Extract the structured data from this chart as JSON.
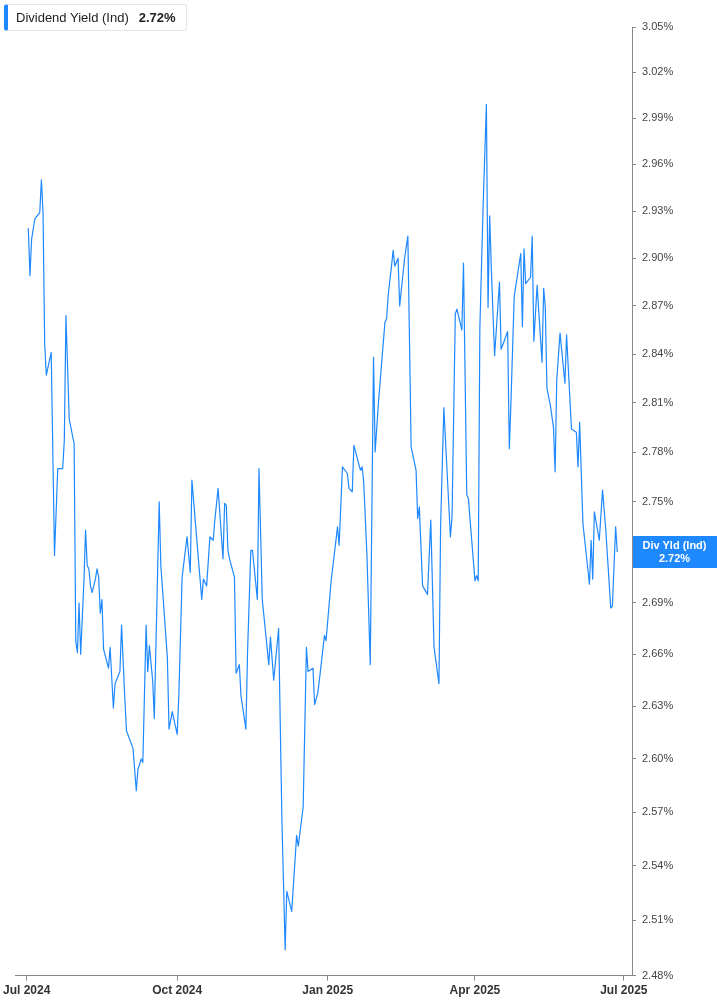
{
  "chart_data": {
    "type": "line",
    "title": "Dividend Yield (Ind)",
    "subtitle": "2.72%",
    "log": "y",
    "marker": "none",
    "line_style": "solid",
    "grid": false,
    "legend": false,
    "xlim": [
      "2024-06-24",
      "2025-07-06"
    ],
    "xticks": [
      {
        "value": "2024-07-01",
        "label": "Jul 2024"
      },
      {
        "value": "2024-10-01",
        "label": "Oct 2024"
      },
      {
        "value": "2025-01-01",
        "label": "Jan 2025"
      },
      {
        "value": "2025-04-01",
        "label": "Apr 2025"
      },
      {
        "value": "2025-07-01",
        "label": "Jul 2025"
      }
    ],
    "ylim": [
      2.48,
      3.05
    ],
    "yticks": [
      {
        "value": 2.48,
        "label": "2.48%"
      },
      {
        "value": 2.51,
        "label": "2.51%"
      },
      {
        "value": 2.54,
        "label": "2.54%"
      },
      {
        "value": 2.57,
        "label": "2.57%"
      },
      {
        "value": 2.6,
        "label": "2.60%"
      },
      {
        "value": 2.63,
        "label": "2.63%"
      },
      {
        "value": 2.66,
        "label": "2.66%"
      },
      {
        "value": 2.69,
        "label": "2.69%"
      },
      {
        "value": 2.72,
        "label": null
      },
      {
        "value": 2.75,
        "label": "2.75%"
      },
      {
        "value": 2.78,
        "label": "2.78%"
      },
      {
        "value": 2.81,
        "label": "2.81%"
      },
      {
        "value": 2.84,
        "label": "2.84%"
      },
      {
        "value": 2.87,
        "label": "2.87%"
      },
      {
        "value": 2.9,
        "label": "2.90%"
      },
      {
        "value": 2.93,
        "label": "2.93%"
      },
      {
        "value": 2.96,
        "label": "2.96%"
      },
      {
        "value": 2.99,
        "label": "2.99%"
      },
      {
        "value": 3.02,
        "label": "3.02%"
      },
      {
        "value": 3.05,
        "label": "3.05%"
      }
    ],
    "annotations": [
      "Div Yld (Ind)",
      "2.72%"
    ],
    "series": [
      {
        "color": "#1e88ff",
        "x": [
          "2024-07-02",
          "2024-07-03",
          "2024-07-04",
          "2024-07-06",
          "2024-07-09",
          "2024-07-10",
          "2024-07-11",
          "2024-07-12",
          "2024-07-13",
          "2024-07-16",
          "2024-07-18",
          "2024-07-20",
          "2024-07-23",
          "2024-07-24",
          "2024-07-25",
          "2024-07-27",
          "2024-07-30",
          "2024-07-31",
          "2024-08-01",
          "2024-08-02",
          "2024-08-03",
          "2024-08-05",
          "2024-08-06",
          "2024-08-07",
          "2024-08-08",
          "2024-08-09",
          "2024-08-10",
          "2024-08-12",
          "2024-08-13",
          "2024-08-14",
          "2024-08-15",
          "2024-08-16",
          "2024-08-17",
          "2024-08-20",
          "2024-08-21",
          "2024-08-23",
          "2024-08-24",
          "2024-08-27",
          "2024-08-28",
          "2024-08-30",
          "2024-08-31",
          "2024-09-04",
          "2024-09-06",
          "2024-09-07",
          "2024-09-09",
          "2024-09-10",
          "2024-09-12",
          "2024-09-13",
          "2024-09-14",
          "2024-09-16",
          "2024-09-17",
          "2024-09-20",
          "2024-09-21",
          "2024-09-25",
          "2024-09-26",
          "2024-09-28",
          "2024-10-01",
          "2024-10-02",
          "2024-10-04",
          "2024-10-07",
          "2024-10-09",
          "2024-10-10",
          "2024-10-12",
          "2024-10-16",
          "2024-10-17",
          "2024-10-19",
          "2024-10-21",
          "2024-10-23",
          "2024-10-24",
          "2024-10-26",
          "2024-10-29",
          "2024-10-30",
          "2024-10-31",
          "2024-11-01",
          "2024-11-02",
          "2024-11-05",
          "2024-11-06",
          "2024-11-08",
          "2024-11-09",
          "2024-11-12",
          "2024-11-13",
          "2024-11-15",
          "2024-11-16",
          "2024-11-19",
          "2024-11-20",
          "2024-11-22",
          "2024-11-26",
          "2024-11-27",
          "2024-11-29",
          "2024-12-02",
          "2024-12-04",
          "2024-12-06",
          "2024-12-07",
          "2024-12-10",
          "2024-12-13",
          "2024-12-14",
          "2024-12-17",
          "2024-12-19",
          "2024-12-20",
          "2024-12-23",
          "2024-12-24",
          "2024-12-26",
          "2024-12-28",
          "2024-12-30",
          "2024-12-31",
          "2025-01-03",
          "2025-01-07",
          "2025-01-08",
          "2025-01-10",
          "2025-01-13",
          "2025-01-14",
          "2025-01-16",
          "2025-01-17",
          "2025-01-21",
          "2025-01-22",
          "2025-01-23",
          "2025-01-25",
          "2025-01-27",
          "2025-01-29",
          "2025-01-30",
          "2025-02-01",
          "2025-02-05",
          "2025-02-06",
          "2025-02-07",
          "2025-02-09",
          "2025-02-10",
          "2025-02-11",
          "2025-02-13",
          "2025-02-14",
          "2025-02-17",
          "2025-02-19",
          "2025-02-21",
          "2025-02-24",
          "2025-02-25",
          "2025-02-26",
          "2025-02-28",
          "2025-03-03",
          "2025-03-05",
          "2025-03-07",
          "2025-03-10",
          "2025-03-11",
          "2025-03-13",
          "2025-03-17",
          "2025-03-18",
          "2025-03-20",
          "2025-03-21",
          "2025-03-24",
          "2025-03-25",
          "2025-03-27",
          "2025-03-28",
          "2025-04-01",
          "2025-04-02",
          "2025-04-03",
          "2025-04-04",
          "2025-04-06",
          "2025-04-08",
          "2025-04-09",
          "2025-04-10",
          "2025-04-11",
          "2025-04-13",
          "2025-04-16",
          "2025-04-17",
          "2025-04-21",
          "2025-04-22",
          "2025-04-23",
          "2025-04-25",
          "2025-04-29",
          "2025-04-30",
          "2025-05-01",
          "2025-05-02",
          "2025-05-05",
          "2025-05-06",
          "2025-05-07",
          "2025-05-09",
          "2025-05-12",
          "2025-05-13",
          "2025-05-14",
          "2025-05-15",
          "2025-05-17",
          "2025-05-19",
          "2025-05-20",
          "2025-05-21",
          "2025-05-23",
          "2025-05-26",
          "2025-05-27",
          "2025-05-30",
          "2025-06-02",
          "2025-06-03",
          "2025-06-04",
          "2025-06-06",
          "2025-06-10",
          "2025-06-11",
          "2025-06-12",
          "2025-06-13",
          "2025-06-16",
          "2025-06-18",
          "2025-06-20",
          "2025-06-23",
          "2025-06-24",
          "2025-06-26",
          "2025-06-27"
        ],
        "values": [
          2.919,
          2.889,
          2.912,
          2.925,
          2.929,
          2.95,
          2.929,
          2.846,
          2.827,
          2.841,
          2.718,
          2.77,
          2.77,
          2.787,
          2.864,
          2.8,
          2.785,
          2.668,
          2.661,
          2.69,
          2.66,
          2.703,
          2.733,
          2.712,
          2.71,
          2.7,
          2.696,
          2.704,
          2.71,
          2.705,
          2.684,
          2.692,
          2.663,
          2.652,
          2.664,
          2.629,
          2.643,
          2.65,
          2.677,
          2.634,
          2.616,
          2.606,
          2.582,
          2.594,
          2.6,
          2.598,
          2.677,
          2.65,
          2.665,
          2.645,
          2.623,
          2.75,
          2.712,
          2.658,
          2.617,
          2.627,
          2.614,
          2.636,
          2.705,
          2.729,
          2.708,
          2.763,
          2.739,
          2.692,
          2.704,
          2.7,
          2.729,
          2.727,
          2.739,
          2.758,
          2.716,
          2.749,
          2.748,
          2.721,
          2.716,
          2.705,
          2.649,
          2.654,
          2.636,
          2.617,
          2.661,
          2.721,
          2.721,
          2.692,
          2.77,
          2.692,
          2.654,
          2.67,
          2.645,
          2.675,
          2.566,
          2.494,
          2.526,
          2.515,
          2.557,
          2.551,
          2.573,
          2.664,
          2.65,
          2.652,
          2.631,
          2.638,
          2.654,
          2.671,
          2.668,
          2.702,
          2.735,
          2.724,
          2.771,
          2.767,
          2.758,
          2.756,
          2.784,
          2.769,
          2.771,
          2.762,
          2.718,
          2.654,
          2.838,
          2.78,
          2.81,
          2.86,
          2.862,
          2.877,
          2.895,
          2.905,
          2.895,
          2.9,
          2.87,
          2.9,
          2.914,
          2.783,
          2.769,
          2.74,
          2.747,
          2.7,
          2.695,
          2.739,
          2.664,
          2.643,
          2.735,
          2.807,
          2.729,
          2.741,
          2.865,
          2.868,
          2.855,
          2.897,
          2.754,
          2.752,
          2.703,
          2.706,
          2.703,
          2.856,
          2.933,
          2.999,
          2.869,
          2.927,
          2.894,
          2.839,
          2.885,
          2.843,
          2.854,
          2.782,
          2.81,
          2.876,
          2.903,
          2.857,
          2.906,
          2.884,
          2.888,
          2.914,
          2.848,
          2.883,
          2.835,
          2.881,
          2.869,
          2.819,
          2.809,
          2.795,
          2.768,
          2.824,
          2.853,
          2.822,
          2.852,
          2.794,
          2.792,
          2.771,
          2.798,
          2.737,
          2.701,
          2.727,
          2.704,
          2.744,
          2.727,
          2.757,
          2.733,
          2.687,
          2.688,
          2.735,
          2.72
        ]
      }
    ]
  }
}
